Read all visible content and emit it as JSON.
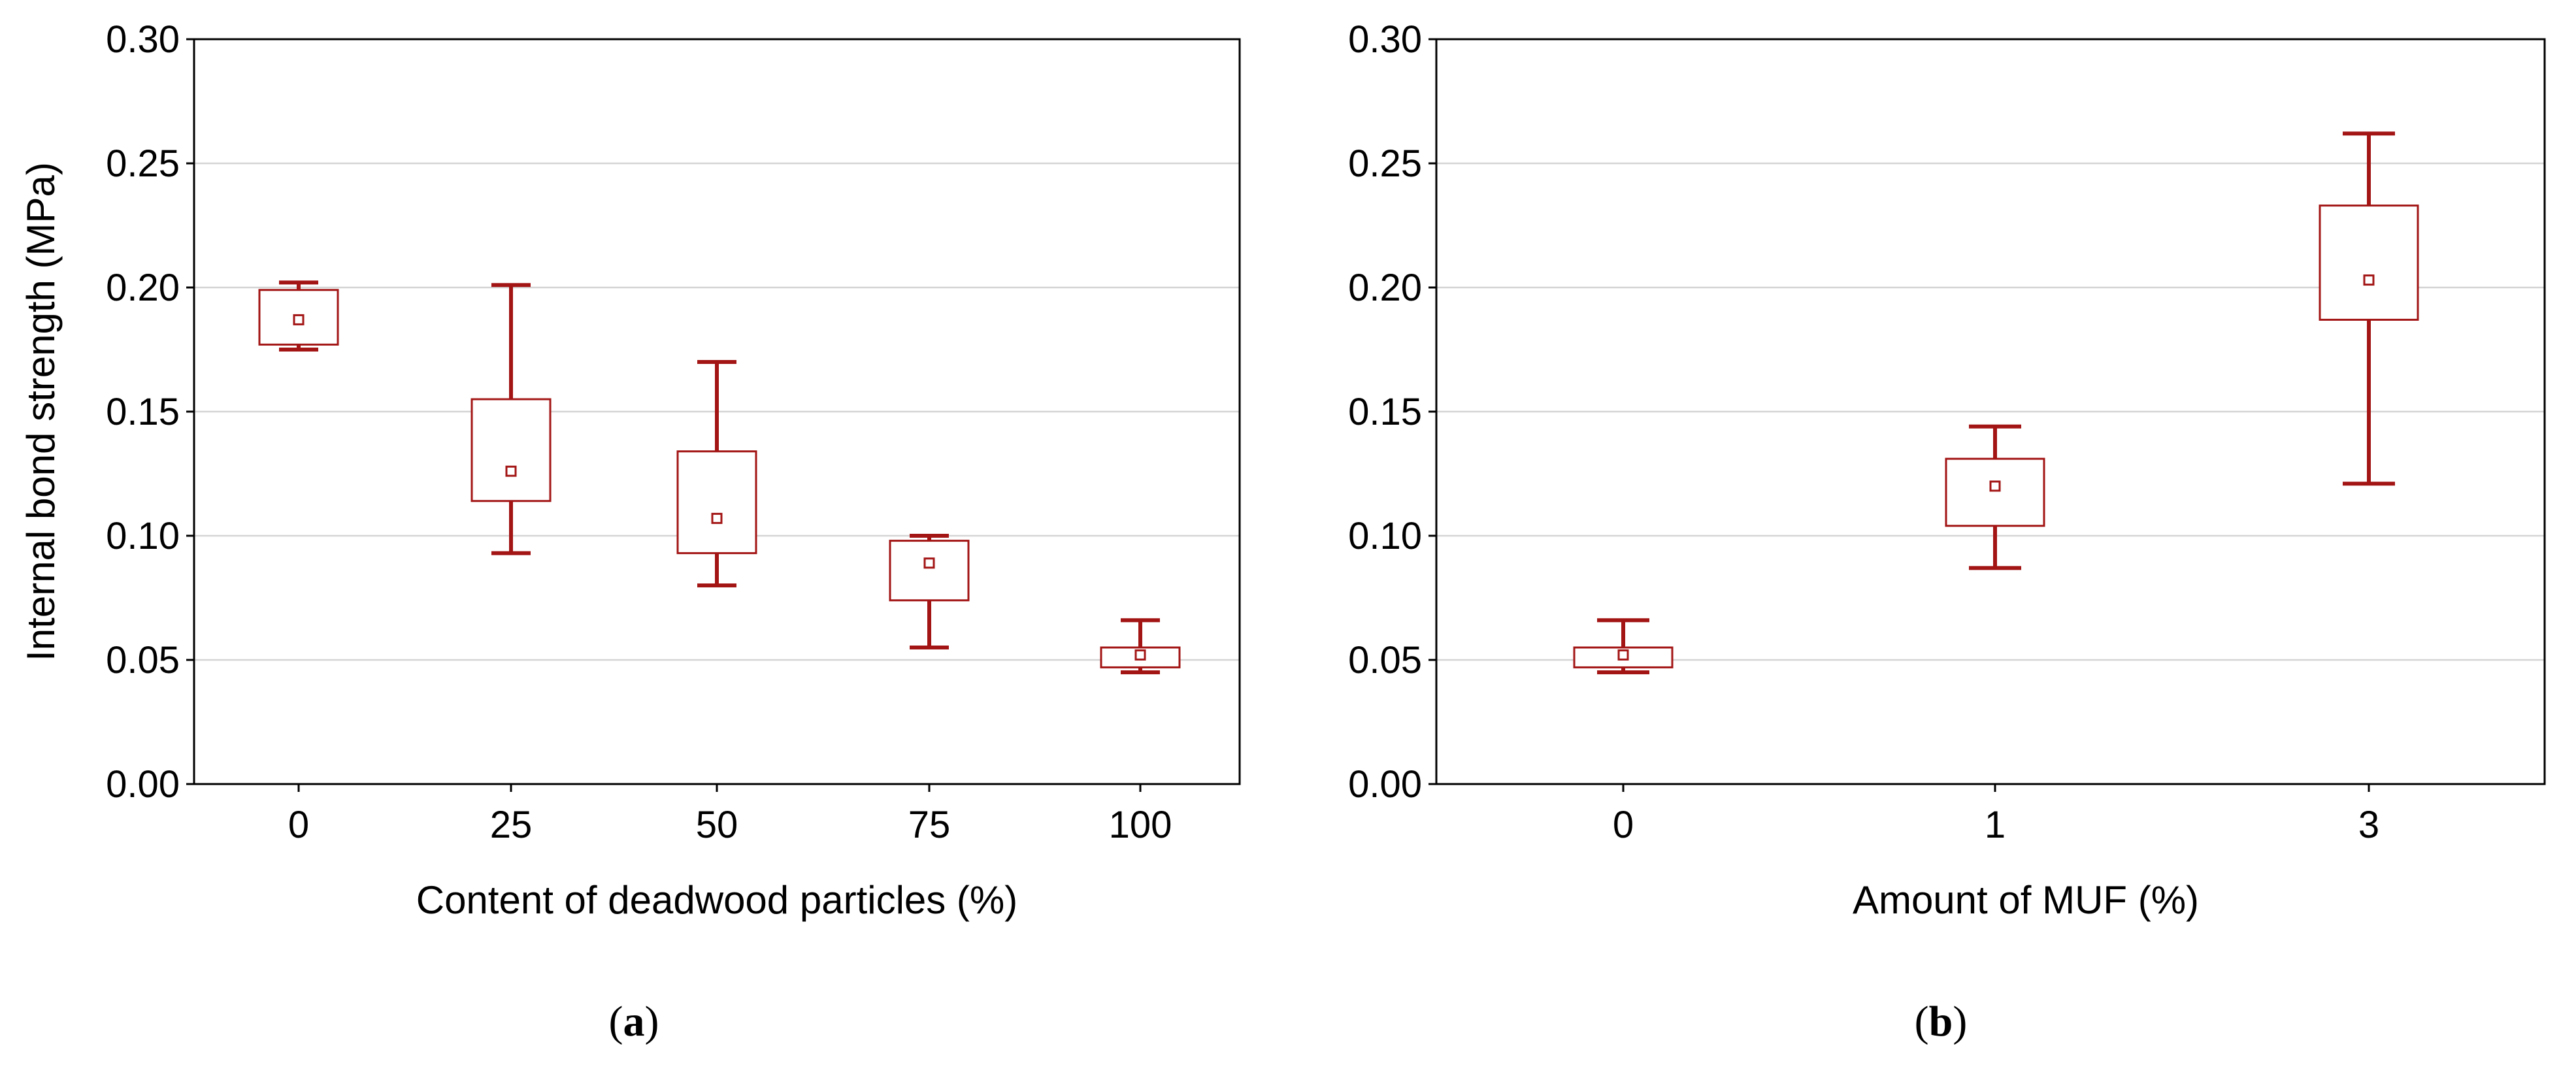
{
  "colors": {
    "box": "#a31515",
    "grid": "#d4d4d4",
    "axis": "#000000"
  },
  "chart_data": [
    {
      "type": "box",
      "panel_label": "a",
      "title": "",
      "xlabel": "Content of deadwood particles (%)",
      "ylabel": "Internal bond strength (MPa)",
      "ylim": [
        0.0,
        0.3
      ],
      "yticks": [
        "0.00",
        "0.05",
        "0.10",
        "0.15",
        "0.20",
        "0.25",
        "0.30"
      ],
      "categories": [
        "0",
        "25",
        "50",
        "75",
        "100"
      ],
      "grid": true,
      "boxes": [
        {
          "category": "0",
          "whisker_low": 0.175,
          "q1": 0.177,
          "mean": 0.187,
          "q3": 0.199,
          "whisker_high": 0.202
        },
        {
          "category": "25",
          "whisker_low": 0.093,
          "q1": 0.114,
          "mean": 0.126,
          "q3": 0.155,
          "whisker_high": 0.201
        },
        {
          "category": "50",
          "whisker_low": 0.08,
          "q1": 0.093,
          "mean": 0.107,
          "q3": 0.134,
          "whisker_high": 0.17
        },
        {
          "category": "75",
          "whisker_low": 0.055,
          "q1": 0.074,
          "mean": 0.089,
          "q3": 0.098,
          "whisker_high": 0.1
        },
        {
          "category": "100",
          "whisker_low": 0.045,
          "q1": 0.047,
          "mean": 0.052,
          "q3": 0.055,
          "whisker_high": 0.066
        }
      ]
    },
    {
      "type": "box",
      "panel_label": "b",
      "title": "",
      "xlabel": "Amount of MUF (%)",
      "ylabel": "",
      "ylim": [
        0.0,
        0.3
      ],
      "yticks": [
        "0.00",
        "0.05",
        "0.10",
        "0.15",
        "0.20",
        "0.25",
        "0.30"
      ],
      "categories": [
        "0",
        "1",
        "3"
      ],
      "grid": true,
      "boxes": [
        {
          "category": "0",
          "whisker_low": 0.045,
          "q1": 0.047,
          "mean": 0.052,
          "q3": 0.055,
          "whisker_high": 0.066
        },
        {
          "category": "1",
          "whisker_low": 0.087,
          "q1": 0.104,
          "mean": 0.12,
          "q3": 0.131,
          "whisker_high": 0.144
        },
        {
          "category": "3",
          "whisker_low": 0.121,
          "q1": 0.187,
          "mean": 0.203,
          "q3": 0.233,
          "whisker_high": 0.262
        }
      ]
    }
  ]
}
